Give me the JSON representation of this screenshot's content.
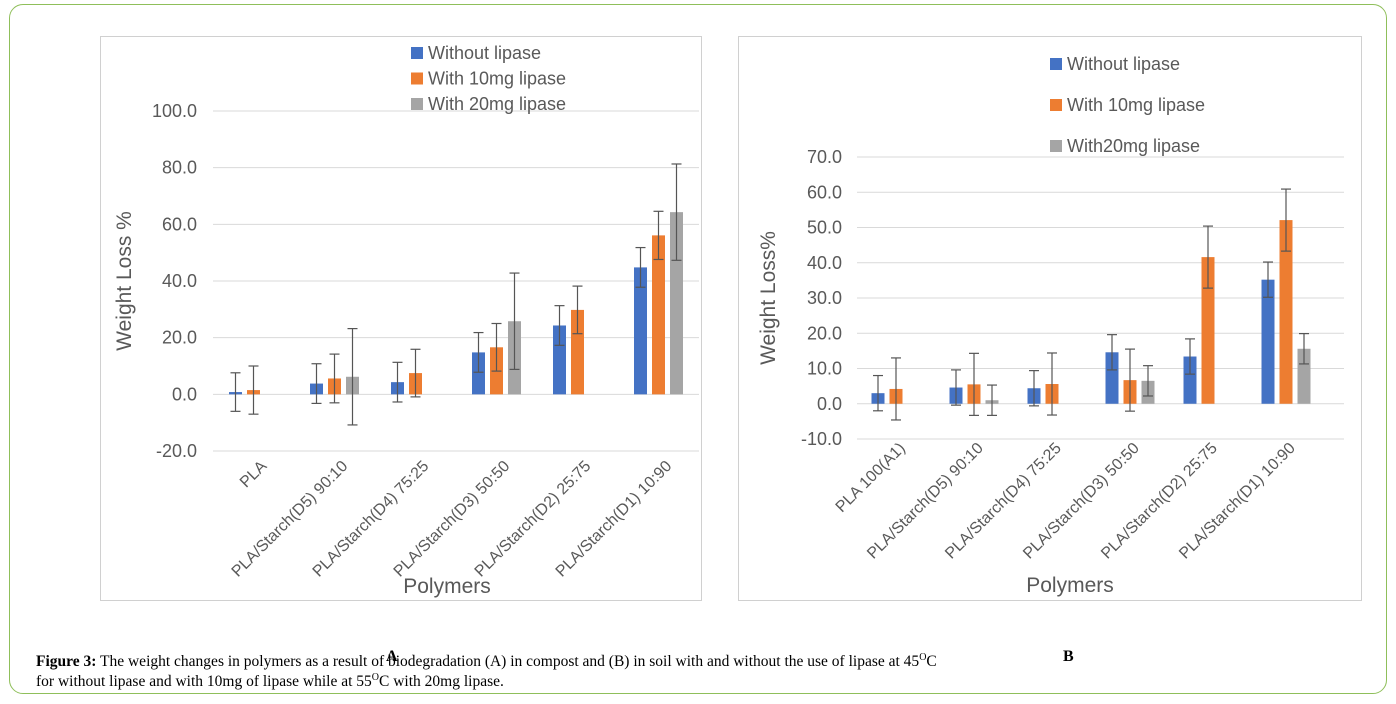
{
  "figure": {
    "caption_label": "Figure 3:",
    "caption_line1_a": " The weight changes in polymers as a result of biodegradation (A) in compost and (B) in soil with and without the use of lipase at 45",
    "caption_sup1": "O",
    "caption_line1_b": "C",
    "caption_line2_a": "for without lipase and with 10mg of lipase while at 55",
    "caption_sup2": "O",
    "caption_line2_b": "C with 20mg lipase.",
    "colors": {
      "without": "#4472c4",
      "with10": "#ed7d31",
      "with20": "#a5a5a5",
      "grid": "#d9d9d9",
      "axis_text": "#595959",
      "error_bar": "#555555"
    }
  },
  "chart_data": [
    {
      "panel_label": "A",
      "type": "bar",
      "xlabel": "Polymers",
      "ylabel": "Weight Loss %",
      "ylim": [
        -20,
        100
      ],
      "yticks": [
        "-20.0",
        "0.0",
        "20.0",
        "40.0",
        "60.0",
        "80.0",
        "100.0"
      ],
      "ytick_values": [
        -20,
        0,
        20,
        40,
        60,
        80,
        100
      ],
      "grid": true,
      "legend_position": "top-right",
      "categories": [
        "PLA",
        "PLA/Starch(D5) 90:10",
        "PLA/Starch(D4) 75:25",
        "PLA/Starch(D3) 50:50",
        "PLA/Starch(D2) 25:75",
        "PLA/Starch(D1) 10:90"
      ],
      "series": [
        {
          "name": "Without lipase",
          "key": "without",
          "values": [
            0.8,
            3.8,
            4.3,
            14.8,
            24.3,
            44.8
          ],
          "errors": [
            6.8,
            7,
            7,
            7,
            7,
            7
          ]
        },
        {
          "name": "With 10mg lipase",
          "key": "with10",
          "values": [
            1.5,
            5.6,
            7.5,
            16.6,
            29.8,
            56.1
          ],
          "errors": [
            8.5,
            8.6,
            8.4,
            8.4,
            8.4,
            8.5
          ]
        },
        {
          "name": "With 20mg lipase",
          "key": "with20",
          "values": [
            null,
            6.2,
            null,
            25.8,
            null,
            64.3
          ],
          "errors": [
            null,
            17,
            null,
            17,
            null,
            17
          ]
        }
      ]
    },
    {
      "panel_label": "B",
      "type": "bar",
      "xlabel": "Polymers",
      "ylabel": "Weight Loss%",
      "ylim": [
        -10,
        70
      ],
      "yticks": [
        "-10.0",
        "0.0",
        "10.0",
        "20.0",
        "30.0",
        "40.0",
        "50.0",
        "60.0",
        "70.0"
      ],
      "ytick_values": [
        -10,
        0,
        10,
        20,
        30,
        40,
        50,
        60,
        70
      ],
      "grid": true,
      "legend_position": "top-right",
      "categories": [
        "PLA 100(A1)",
        "PLA/Starch(D5) 90:10",
        "PLA/Starch(D4) 75:25",
        "PLA/Starch(D3) 50:50",
        "PLA/Starch(D2) 25:75",
        "PLA/Starch(D1) 10:90"
      ],
      "series": [
        {
          "name": "Without lipase",
          "key": "without",
          "values": [
            3.0,
            4.6,
            4.4,
            14.6,
            13.4,
            35.2
          ],
          "errors": [
            5,
            5,
            5,
            5,
            5,
            5
          ]
        },
        {
          "name": "With 10mg lipase",
          "key": "with10",
          "values": [
            4.2,
            5.5,
            5.6,
            6.7,
            41.6,
            52.1
          ],
          "errors": [
            8.8,
            8.8,
            8.8,
            8.8,
            8.8,
            8.8
          ]
        },
        {
          "name": "With20mg lipase",
          "key": "with20",
          "values": [
            null,
            1.0,
            null,
            6.5,
            null,
            15.6
          ],
          "errors": [
            null,
            4.3,
            null,
            4.3,
            null,
            4.3
          ]
        }
      ]
    }
  ]
}
